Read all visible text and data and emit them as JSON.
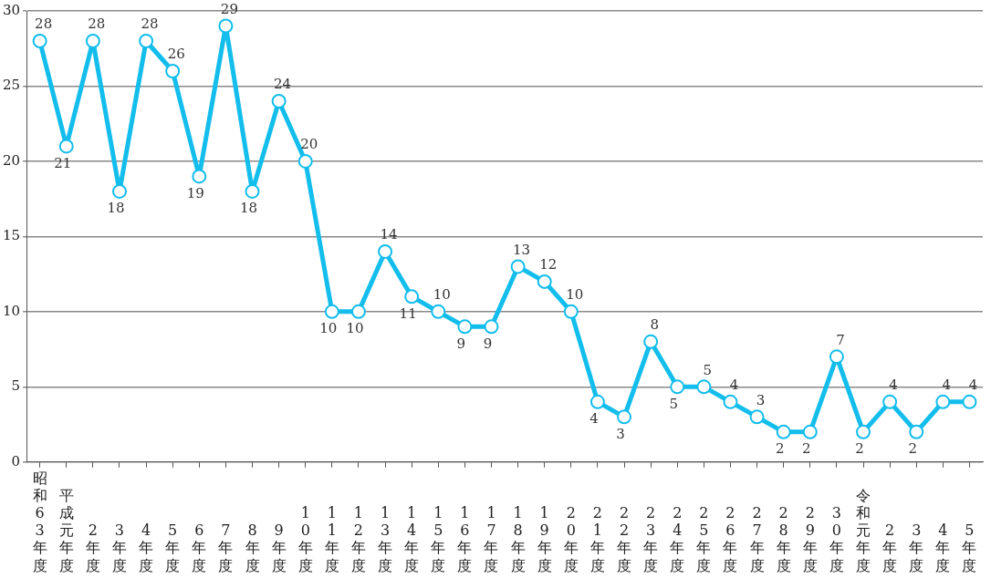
{
  "chart_data": {
    "type": "line",
    "categories": [
      "昭和63年度",
      "平成元年度",
      "2年度",
      "3年度",
      "4年度",
      "5年度",
      "6年度",
      "7年度",
      "8年度",
      "9年度",
      "10年度",
      "11年度",
      "12年度",
      "13年度",
      "14年度",
      "15年度",
      "16年度",
      "17年度",
      "18年度",
      "19年度",
      "20年度",
      "21年度",
      "22年度",
      "23年度",
      "24年度",
      "25年度",
      "26年度",
      "27年度",
      "28年度",
      "29年度",
      "30年度",
      "令和元年度",
      "2年度",
      "3年度",
      "4年度",
      "5年度"
    ],
    "values": [
      28,
      21,
      28,
      18,
      28,
      26,
      19,
      29,
      18,
      24,
      20,
      10,
      10,
      14,
      11,
      10,
      9,
      9,
      13,
      12,
      10,
      4,
      3,
      8,
      5,
      5,
      4,
      3,
      2,
      2,
      7,
      2,
      4,
      2,
      4,
      4
    ],
    "color": "#13bdec",
    "marker": "circle",
    "line_style": "solid",
    "ylim": [
      0,
      30
    ],
    "yticks": [
      0,
      5,
      10,
      15,
      20,
      25,
      30
    ],
    "grid": "y",
    "data_labels": true
  }
}
